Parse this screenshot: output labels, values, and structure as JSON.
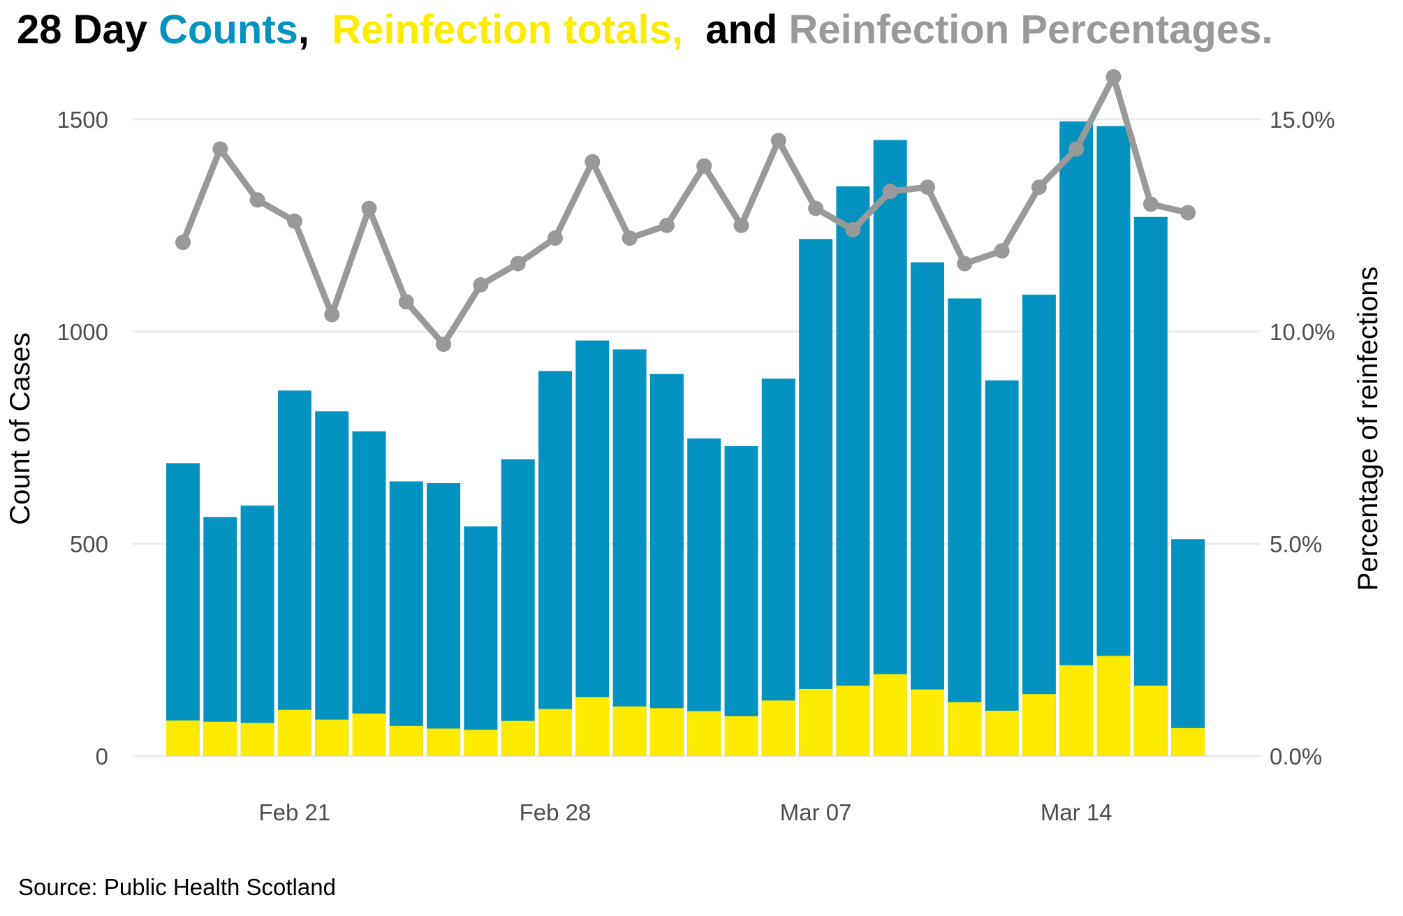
{
  "title_parts": [
    {
      "text": "28 Day ",
      "color": "#000000"
    },
    {
      "text": "Counts",
      "color": "#0493C1"
    },
    {
      "text": ",  ",
      "color": "#000000"
    },
    {
      "text": "Reinfection totals,",
      "color": "#FCEB00"
    },
    {
      "text": "  and ",
      "color": "#000000"
    },
    {
      "text": "Reinfection Percentages.",
      "color": "#999999"
    }
  ],
  "source": "Source: Public Health Scotland",
  "chart_data": {
    "type": "bar",
    "x_tick_labels": [
      "Feb 21",
      "Feb 28",
      "Mar 07",
      "Mar 14"
    ],
    "x_tick_dates": [
      "2022-02-21",
      "2022-02-28",
      "2022-03-07",
      "2022-03-14"
    ],
    "dates": [
      "2022-02-18",
      "2022-02-19",
      "2022-02-20",
      "2022-02-21",
      "2022-02-22",
      "2022-02-23",
      "2022-02-24",
      "2022-02-25",
      "2022-02-26",
      "2022-02-27",
      "2022-02-28",
      "2022-03-01",
      "2022-03-02",
      "2022-03-03",
      "2022-03-04",
      "2022-03-05",
      "2022-03-06",
      "2022-03-07",
      "2022-03-08",
      "2022-03-09",
      "2022-03-10",
      "2022-03-11",
      "2022-03-12",
      "2022-03-13",
      "2022-03-14",
      "2022-03-15",
      "2022-03-16",
      "2022-03-17"
    ],
    "ylabel": "Count of Cases",
    "y2label": "Percentage of reinfections",
    "ylim": [
      0,
      1600
    ],
    "y_ticks": [
      0,
      500,
      1000,
      1500
    ],
    "y2lim": [
      0,
      16
    ],
    "y2_ticks": [
      "0.0%",
      "5.0%",
      "10.0%",
      "15.0%"
    ],
    "grid": true,
    "series": [
      {
        "name": "Counts",
        "kind": "bar",
        "color": "#0493C1",
        "values": [
          690,
          563,
          590,
          861,
          812,
          765,
          647,
          643,
          541,
          699,
          907,
          979,
          958,
          900,
          748,
          730,
          889,
          1218,
          1342,
          1451,
          1163,
          1078,
          885,
          1087,
          1495,
          1484,
          1270,
          511
        ]
      },
      {
        "name": "Reinfection totals",
        "kind": "bar",
        "color": "#FCEB00",
        "values": [
          84,
          81,
          78,
          109,
          86,
          100,
          71,
          65,
          62,
          83,
          111,
          139,
          117,
          113,
          106,
          94,
          131,
          158,
          166,
          193,
          157,
          127,
          107,
          146,
          214,
          236,
          166,
          66
        ]
      },
      {
        "name": "Reinfection Percentages",
        "kind": "line",
        "axis": "right",
        "color": "#999999",
        "values": [
          12.1,
          14.3,
          13.1,
          12.6,
          10.4,
          12.9,
          10.7,
          9.7,
          11.1,
          11.6,
          12.2,
          14.0,
          12.2,
          12.5,
          13.9,
          12.5,
          14.5,
          12.9,
          12.4,
          13.3,
          13.4,
          11.6,
          11.9,
          13.4,
          14.3,
          16.0,
          13.0,
          12.8
        ]
      }
    ]
  }
}
